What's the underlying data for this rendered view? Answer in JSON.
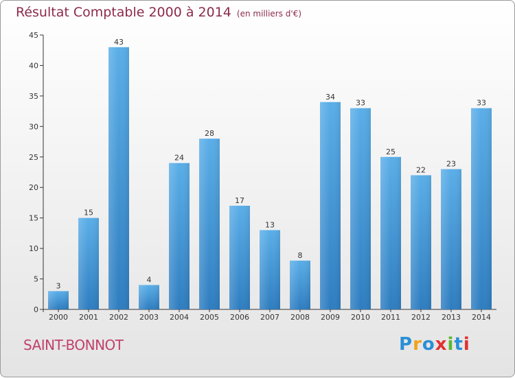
{
  "header": {
    "title": "Résultat Comptable 2000 à 2014",
    "unit": "(en milliers d'€)"
  },
  "commune": "SAINT-BONNOT",
  "logo": {
    "text": "Proxiti",
    "letters": [
      {
        "ch": "P",
        "color": "#2a8fd6"
      },
      {
        "ch": "r",
        "color": "#f2a21b"
      },
      {
        "ch": "o",
        "color": "#2a8fd6"
      },
      {
        "ch": "x",
        "color": "#e0322f"
      },
      {
        "ch": "i",
        "color": "#5bb82f"
      },
      {
        "ch": "t",
        "color": "#2a8fd6"
      },
      {
        "ch": "i",
        "color": "#e0322f"
      }
    ]
  },
  "colors": {
    "bar_top": "#5aaee8",
    "bar_bottom": "#2e7dc0",
    "title": "#8b2a4b",
    "commune": "#c1406a"
  },
  "chart_data": {
    "type": "bar",
    "title": "Résultat Comptable 2000 à 2014",
    "subtitle": "(en milliers d'€)",
    "categories": [
      "2000",
      "2001",
      "2002",
      "2003",
      "2004",
      "2005",
      "2006",
      "2007",
      "2008",
      "2009",
      "2010",
      "2011",
      "2012",
      "2013",
      "2014"
    ],
    "values": [
      3,
      15,
      43,
      4,
      24,
      28,
      17,
      13,
      8,
      34,
      33,
      25,
      22,
      23,
      33
    ],
    "ylim": [
      0,
      45
    ],
    "yticks": [
      0,
      5,
      10,
      15,
      20,
      25,
      30,
      35,
      40,
      45
    ],
    "grid": false,
    "data_labels": true
  }
}
